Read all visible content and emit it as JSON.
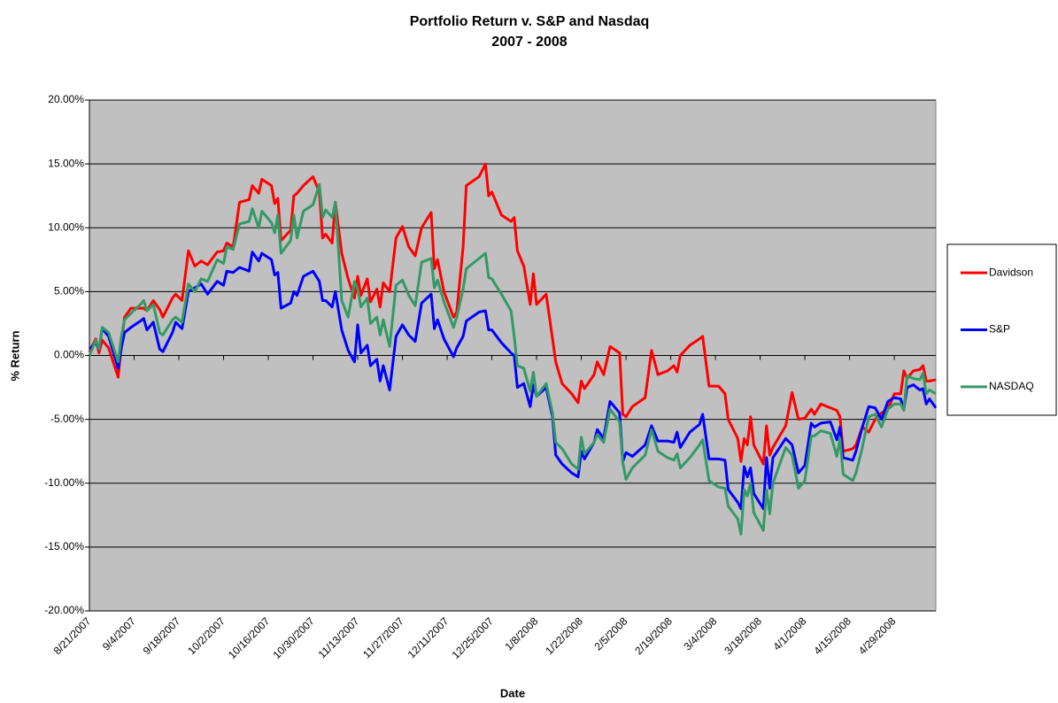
{
  "chart_data": {
    "type": "line",
    "title": "Portfolio Return v. S&P and Nasdaq",
    "subtitle": "2007 - 2008",
    "x_label": "Date",
    "y_label": "% Return",
    "legend": "right",
    "grid": true,
    "background": "#c0c0c0",
    "xlim": [
      "8/21/2007",
      "5/12/2008"
    ],
    "xticks": [
      "8/21/2007",
      "9/4/2007",
      "9/18/2007",
      "10/2/2007",
      "10/16/2007",
      "10/30/2007",
      "11/13/2007",
      "11/27/2007",
      "12/11/2007",
      "12/25/2007",
      "1/8/2008",
      "1/22/2008",
      "2/5/2008",
      "2/19/2008",
      "3/4/2008",
      "3/18/2008",
      "4/1/2008",
      "4/15/2008",
      "4/29/2008"
    ],
    "ylim": [
      -20,
      20
    ],
    "yticks": [
      {
        "value": -20,
        "label": "-20.00%"
      },
      {
        "value": -15,
        "label": "-15.00%"
      },
      {
        "value": -10,
        "label": "-10.00%"
      },
      {
        "value": -5,
        "label": "-5.00%"
      },
      {
        "value": 0,
        "label": "0.00%"
      },
      {
        "value": 5,
        "label": "5.00%"
      },
      {
        "value": 10,
        "label": "10.00%"
      },
      {
        "value": 15,
        "label": "15.00%"
      },
      {
        "value": 20,
        "label": "20.00%"
      }
    ],
    "x": [
      "8/21/2007",
      "8/23/2007",
      "8/24/2007",
      "8/25/2007",
      "8/27/2007",
      "8/30/2007",
      "8/31/2007",
      "9/1/2007",
      "9/3/2007",
      "9/6/2007",
      "9/7/2007",
      "9/8/2007",
      "9/10/2007",
      "9/12/2007",
      "9/13/2007",
      "9/16/2007",
      "9/17/2007",
      "9/19/2007",
      "9/21/2007",
      "9/23/2007",
      "9/25/2007",
      "9/27/2007",
      "9/30/2007",
      "10/2/2007",
      "10/3/2007",
      "10/5/2007",
      "10/7/2007",
      "10/10/2007",
      "10/11/2007",
      "10/13/2007",
      "10/14/2007",
      "10/17/2007",
      "10/18/2007",
      "10/19/2007",
      "10/20/2007",
      "10/23/2007",
      "10/24/2007",
      "10/25/2007",
      "10/27/2007",
      "10/30/2007",
      "11/1/2007",
      "11/2/2007",
      "11/3/2007",
      "11/5/2007",
      "11/6/2007",
      "11/8/2007",
      "11/10/2007",
      "11/12/2007",
      "11/13/2007",
      "11/14/2007",
      "11/16/2007",
      "11/17/2007",
      "11/19/2007",
      "11/20/2007",
      "11/21/2007",
      "11/23/2007",
      "11/25/2007",
      "11/27/2007",
      "11/29/2007",
      "12/1/2007",
      "12/3/2007",
      "12/6/2007",
      "12/7/2007",
      "12/8/2007",
      "12/10/2007",
      "12/13/2007",
      "12/14/2007",
      "12/16/2007",
      "12/17/2007",
      "12/21/2007",
      "12/23/2007",
      "12/24/2007",
      "12/25/2007",
      "12/28/2007",
      "12/31/2007",
      "1/1/2008",
      "1/2/2008",
      "1/4/2008",
      "1/6/2008",
      "1/7/2008",
      "1/8/2008",
      "1/11/2008",
      "1/13/2008",
      "1/14/2008",
      "1/16/2008",
      "1/19/2008",
      "1/21/2008",
      "1/22/2008",
      "1/23/2008",
      "1/26/2008",
      "1/27/2008",
      "1/29/2008",
      "1/31/2008",
      "2/3/2008",
      "2/4/2008",
      "2/5/2008",
      "2/7/2008",
      "2/11/2008",
      "2/13/2008",
      "2/15/2008",
      "2/18/2008",
      "2/20/2008",
      "2/21/2008",
      "2/22/2008",
      "2/25/2008",
      "2/28/2008",
      "2/29/2008",
      "3/2/2008",
      "3/5/2008",
      "3/7/2008",
      "3/8/2008",
      "3/11/2008",
      "3/12/2008",
      "3/13/2008",
      "3/14/2008",
      "3/15/2008",
      "3/16/2008",
      "3/19/2008",
      "3/20/2008",
      "3/21/2008",
      "3/22/2008",
      "3/26/2008",
      "3/28/2008",
      "3/30/2008",
      "4/1/2008",
      "4/3/2008",
      "4/4/2008",
      "4/6/2008",
      "4/9/2008",
      "4/11/2008",
      "4/12/2008",
      "4/13/2008",
      "4/16/2008",
      "4/17/2008",
      "4/19/2008",
      "4/21/2008",
      "4/23/2008",
      "4/25/2008",
      "4/27/2008",
      "4/29/2008",
      "5/1/2008",
      "5/2/2008",
      "5/3/2008",
      "5/5/2008",
      "5/7/2008",
      "5/8/2008",
      "5/9/2008",
      "5/10/2008",
      "5/12/2008"
    ],
    "series": [
      {
        "name": "Davidson",
        "color": "#ff0000",
        "values": [
          0.3,
          1.3,
          0.2,
          1.2,
          0.6,
          -1.7,
          0.8,
          3.0,
          3.7,
          3.7,
          3.7,
          3.5,
          4.3,
          3.6,
          3.0,
          4.5,
          4.8,
          4.3,
          8.2,
          7.0,
          7.4,
          7.1,
          8.1,
          8.2,
          8.8,
          8.5,
          12.0,
          12.2,
          13.3,
          12.7,
          13.8,
          13.3,
          11.9,
          12.3,
          9.0,
          9.8,
          12.5,
          12.7,
          13.3,
          14.0,
          12.8,
          9.2,
          9.5,
          8.8,
          12.0,
          8.0,
          6.0,
          4.5,
          6.2,
          4.7,
          6.0,
          4.2,
          5.2,
          3.8,
          5.7,
          5.0,
          9.2,
          10.1,
          8.5,
          7.8,
          10.0,
          11.2,
          6.8,
          7.5,
          5.0,
          3.0,
          3.4,
          8.5,
          13.3,
          14.0,
          15.0,
          12.5,
          12.8,
          11.0,
          10.5,
          10.8,
          8.2,
          7.0,
          4.0,
          6.4,
          4.0,
          4.8,
          1.3,
          -0.5,
          -2.2,
          -3.0,
          -3.7,
          -2.0,
          -2.6,
          -1.5,
          -0.5,
          -1.5,
          0.7,
          0.2,
          -4.6,
          -4.8,
          -4.0,
          -3.3,
          0.4,
          -1.5,
          -1.2,
          -0.8,
          -1.3,
          0.0,
          0.8,
          1.3,
          1.5,
          -2.4,
          -2.4,
          -3.0,
          -5.0,
          -6.5,
          -8.3,
          -6.5,
          -7.0,
          -4.8,
          -7.0,
          -8.5,
          -5.5,
          -7.8,
          -7.2,
          -5.5,
          -2.9,
          -5.0,
          -4.9,
          -4.2,
          -4.6,
          -3.8,
          -4.1,
          -4.3,
          -4.8,
          -7.5,
          -7.3,
          -7.0,
          -5.6,
          -6.0,
          -5.0,
          -4.5,
          -4.2,
          -3.0,
          -3.0,
          -1.2,
          -1.8,
          -1.2,
          -1.1,
          -0.8,
          -2.0,
          -2.0,
          -1.9
        ]
      },
      {
        "name": "S&P",
        "color": "#0000ff",
        "values": [
          0.5,
          1.0,
          0.5,
          2.1,
          1.5,
          -1.0,
          0.6,
          1.8,
          2.2,
          2.7,
          2.9,
          2.0,
          2.6,
          0.5,
          0.3,
          1.8,
          2.6,
          2.1,
          5.0,
          5.3,
          5.6,
          4.8,
          5.8,
          5.5,
          6.6,
          6.5,
          6.9,
          6.6,
          8.1,
          7.4,
          8.0,
          7.5,
          6.3,
          6.5,
          3.7,
          4.1,
          5.0,
          4.7,
          6.2,
          6.6,
          5.8,
          4.3,
          4.3,
          3.8,
          5.0,
          2.0,
          0.4,
          -0.5,
          2.4,
          0.2,
          0.8,
          -0.8,
          -0.3,
          -2.0,
          -0.8,
          -2.7,
          1.5,
          2.4,
          1.6,
          1.1,
          4.1,
          4.8,
          2.1,
          2.8,
          1.3,
          -0.1,
          0.6,
          1.5,
          2.7,
          3.4,
          3.5,
          2.0,
          2.0,
          1.0,
          0.2,
          0.0,
          -2.5,
          -2.2,
          -4.0,
          -2.3,
          -3.2,
          -2.5,
          -4.8,
          -7.8,
          -8.5,
          -9.2,
          -9.5,
          -7.5,
          -8.1,
          -6.8,
          -5.8,
          -6.5,
          -3.6,
          -4.5,
          -8.3,
          -7.6,
          -7.9,
          -7.0,
          -5.5,
          -6.7,
          -6.7,
          -6.8,
          -6.0,
          -7.2,
          -6.0,
          -5.4,
          -4.6,
          -8.1,
          -8.1,
          -8.2,
          -10.5,
          -11.5,
          -12.0,
          -8.7,
          -9.5,
          -8.8,
          -10.8,
          -12.0,
          -8.0,
          -10.4,
          -8.0,
          -6.5,
          -7.0,
          -9.2,
          -8.6,
          -5.3,
          -5.6,
          -5.3,
          -5.2,
          -6.6,
          -5.6,
          -8.0,
          -8.2,
          -7.5,
          -5.6,
          -4.0,
          -4.1,
          -5.0,
          -3.6,
          -3.3,
          -3.4,
          -4.2,
          -2.5,
          -2.3,
          -2.7,
          -2.6,
          -3.8,
          -3.4,
          -4.1
        ]
      },
      {
        "name": "NASDAQ",
        "color": "#339966",
        "values": [
          0.0,
          1.2,
          0.5,
          2.2,
          1.8,
          -0.5,
          1.5,
          2.8,
          3.3,
          4.0,
          4.3,
          3.5,
          4.0,
          1.8,
          1.6,
          2.8,
          3.0,
          2.6,
          5.6,
          5.0,
          6.0,
          5.8,
          7.5,
          7.2,
          8.5,
          8.3,
          10.3,
          10.5,
          11.5,
          10.0,
          11.3,
          10.4,
          9.6,
          11.0,
          8.0,
          9.0,
          11.0,
          9.2,
          11.3,
          11.8,
          13.4,
          10.8,
          11.4,
          10.8,
          12.0,
          4.3,
          3.0,
          5.8,
          5.2,
          3.8,
          4.5,
          2.5,
          3.0,
          1.6,
          2.8,
          0.7,
          5.5,
          5.9,
          4.7,
          3.9,
          7.3,
          7.6,
          5.3,
          5.9,
          4.2,
          2.2,
          3.0,
          5.2,
          6.8,
          7.6,
          8.0,
          6.1,
          6.0,
          4.8,
          3.5,
          1.5,
          -0.8,
          -1.0,
          -2.8,
          -1.3,
          -3.2,
          -2.2,
          -4.5,
          -6.8,
          -7.3,
          -8.5,
          -8.9,
          -6.4,
          -7.7,
          -6.8,
          -6.2,
          -6.8,
          -4.2,
          -5.2,
          -8.4,
          -9.7,
          -8.8,
          -7.8,
          -5.8,
          -7.5,
          -8.0,
          -8.2,
          -7.7,
          -8.8,
          -8.0,
          -7.0,
          -6.6,
          -9.8,
          -10.3,
          -10.4,
          -11.8,
          -12.8,
          -14.0,
          -10.5,
          -11.0,
          -10.0,
          -12.3,
          -13.7,
          -10.5,
          -12.4,
          -10.0,
          -7.2,
          -7.8,
          -10.4,
          -9.8,
          -6.3,
          -6.3,
          -5.9,
          -6.1,
          -7.9,
          -6.5,
          -9.3,
          -9.8,
          -9.2,
          -7.2,
          -4.8,
          -4.6,
          -5.6,
          -4.2,
          -3.8,
          -3.8,
          -4.3,
          -1.6,
          -1.8,
          -1.9,
          -1.4,
          -3.0,
          -2.7,
          -3.0
        ]
      }
    ]
  }
}
